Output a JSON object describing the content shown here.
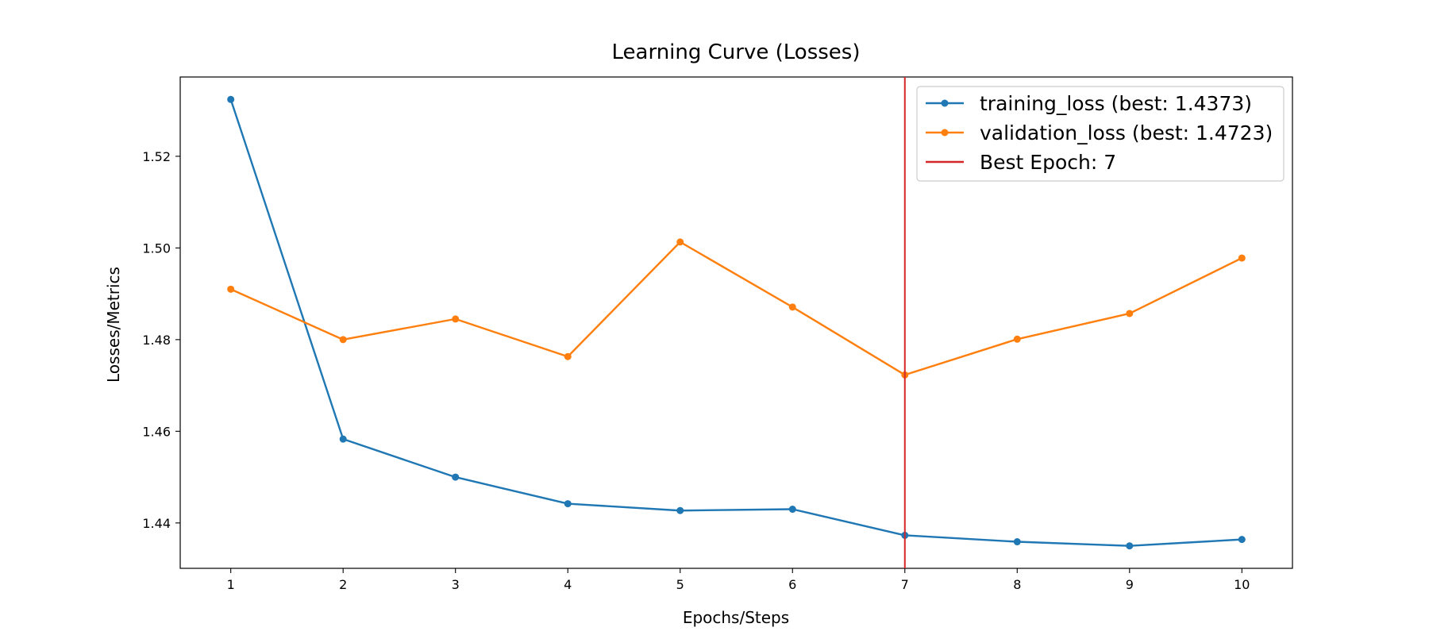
{
  "chart_data": {
    "type": "line",
    "title": "Learning Curve (Losses)",
    "xlabel": "Epochs/Steps",
    "ylabel": "Losses/Metrics",
    "x": [
      1,
      2,
      3,
      4,
      5,
      6,
      7,
      8,
      9,
      10
    ],
    "xticks": [
      "1",
      "2",
      "3",
      "4",
      "5",
      "6",
      "7",
      "8",
      "9",
      "10"
    ],
    "yticks": [
      "1.44",
      "1.46",
      "1.48",
      "1.50",
      "1.52"
    ],
    "ytick_values": [
      1.44,
      1.46,
      1.48,
      1.5,
      1.52
    ],
    "xlim": [
      0.55,
      10.45
    ],
    "ylim": [
      1.4301,
      1.5373
    ],
    "grid": false,
    "legend_position": "top-right",
    "series": [
      {
        "name": "training_loss (best: 1.4373)",
        "color": "#1f77b4",
        "marker": "circle",
        "values": [
          1.5324,
          1.4583,
          1.45,
          1.4442,
          1.4427,
          1.443,
          1.4373,
          1.4359,
          1.435,
          1.4364
        ]
      },
      {
        "name": "validation_loss (best: 1.4723)",
        "color": "#ff7f0e",
        "marker": "circle",
        "values": [
          1.491,
          1.48,
          1.4845,
          1.4763,
          1.5013,
          1.4871,
          1.4723,
          1.4801,
          1.4857,
          1.4978
        ]
      }
    ],
    "vline": {
      "x": 7,
      "label": "Best Epoch: 7",
      "color": "#d62728"
    }
  }
}
